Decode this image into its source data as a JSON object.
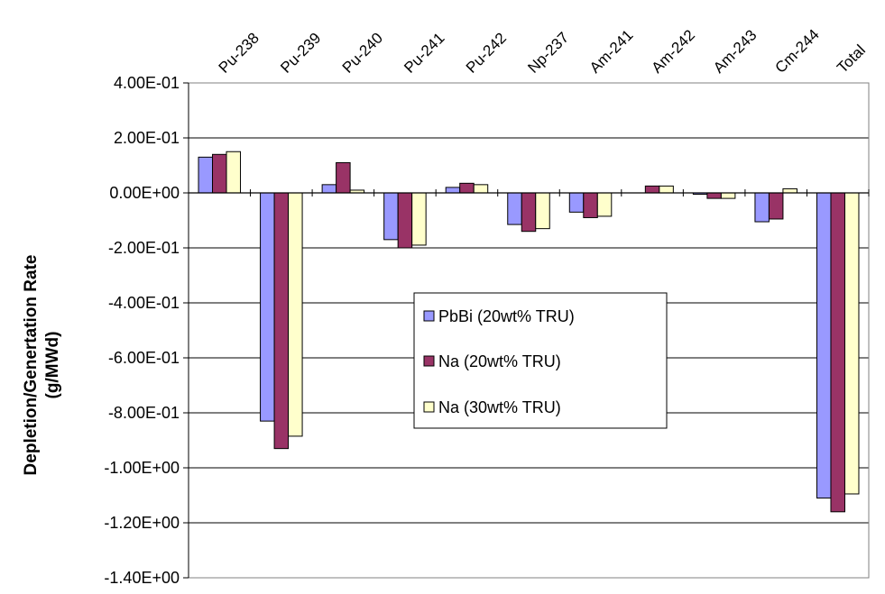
{
  "chart_data": {
    "type": "bar",
    "title": "",
    "xlabel": "",
    "ylabel_line1": "Depletion/Genertation Rate",
    "ylabel_line2": "(g/MWd)",
    "ylim": [
      -1.4,
      0.4
    ],
    "yticks": [
      0.4,
      0.2,
      0.0,
      -0.2,
      -0.4,
      -0.6,
      -0.8,
      -1.0,
      -1.2,
      -1.4
    ],
    "ytick_labels": [
      "4.00E-01",
      "2.00E-01",
      "0.00E+00",
      "-2.00E-01",
      "-4.00E-01",
      "-6.00E-01",
      "-8.00E-01",
      "-1.00E+00",
      "-1.20E+00",
      "-1.40E+00"
    ],
    "grid": true,
    "legend_position": "center",
    "categories": [
      "Pu-238",
      "Pu-239",
      "Pu-240",
      "Pu-241",
      "Pu-242",
      "Np-237",
      "Am-241",
      "Am-242",
      "Am-243",
      "Cm-244",
      "Total"
    ],
    "series": [
      {
        "name": "PbBi (20wt% TRU)",
        "color": "#9999ff",
        "values": [
          0.13,
          -0.83,
          0.03,
          -0.17,
          0.02,
          -0.115,
          -0.07,
          0.0,
          -0.005,
          -0.105,
          -1.11
        ]
      },
      {
        "name": "Na (20wt% TRU)",
        "color": "#993366",
        "values": [
          0.14,
          -0.93,
          0.11,
          -0.2,
          0.035,
          -0.14,
          -0.09,
          0.025,
          -0.02,
          -0.095,
          -1.16
        ]
      },
      {
        "name": "Na (30wt% TRU)",
        "color": "#ffffcc",
        "values": [
          0.15,
          -0.885,
          0.01,
          -0.19,
          0.03,
          -0.13,
          -0.085,
          0.025,
          -0.02,
          0.015,
          -1.095
        ]
      }
    ]
  }
}
